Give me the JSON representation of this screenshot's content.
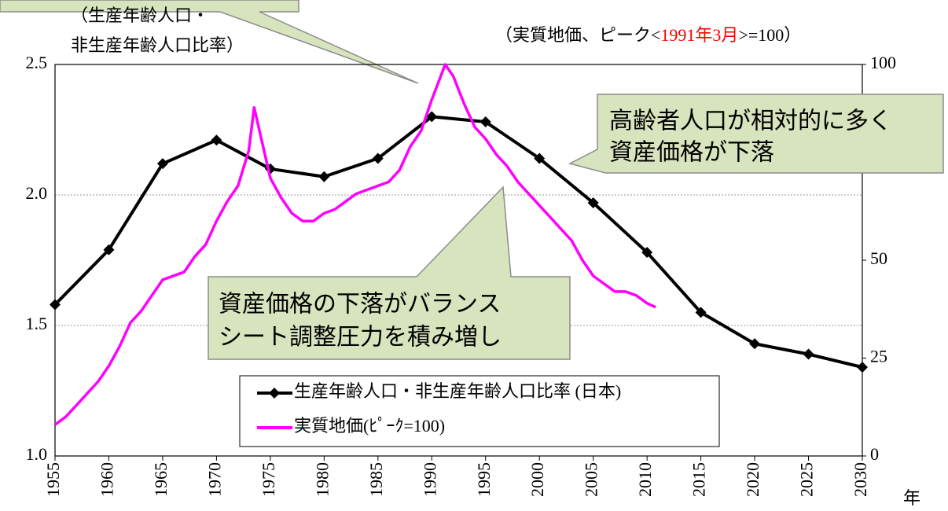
{
  "chart_data": {
    "type": "line",
    "y_label": [
      "（生産年齢人口・",
      "非生産年齢人口比率）"
    ],
    "y2_label": {
      "before": "（実質地価、ピーク<",
      "highlight": "1991年3月",
      "after": ">=100）"
    },
    "highlight_color": "#ff0000",
    "x_label": "年",
    "xlim": [
      1955,
      2030
    ],
    "xticks": [
      1955,
      1960,
      1965,
      1970,
      1975,
      1980,
      1985,
      1990,
      1995,
      2000,
      2005,
      2010,
      2015,
      2020,
      2025,
      2030
    ],
    "ylim": [
      1.0,
      2.5
    ],
    "yticks": [
      {
        "value": 1.0,
        "label": "1.0"
      },
      1.5,
      {
        "value": 2.0,
        "label": "2.0"
      },
      2.5
    ],
    "y2lim": [
      0,
      100
    ],
    "y2ticks": [
      0,
      25,
      50,
      100
    ],
    "grid": true,
    "series": [
      {
        "name": "生産年齢人口・非生産年齢人口比率 (日本)",
        "color": "#000000",
        "marker": "diamond",
        "x": [
          1955,
          1960,
          1965,
          1970,
          1975,
          1980,
          1985,
          1990,
          1995,
          2000,
          2005,
          2010,
          2015,
          2020,
          2025,
          2030
        ],
        "values": [
          1.58,
          1.79,
          2.12,
          2.21,
          2.1,
          2.07,
          2.14,
          2.3,
          2.28,
          2.14,
          1.97,
          1.78,
          1.55,
          1.43,
          1.39,
          1.34
        ]
      },
      {
        "name": "実質地価(ﾋﾟｰｸ=100)",
        "color": "#ff00ff",
        "axis": "y2",
        "x": [
          1955,
          1956,
          1957,
          1958,
          1959,
          1960,
          1961,
          1962,
          1963,
          1964,
          1965,
          1966,
          1967,
          1968,
          1969,
          1970,
          1971,
          1972,
          1973,
          1973.5,
          1974,
          1975,
          1976,
          1977,
          1978,
          1979,
          1980,
          1981,
          1982,
          1983,
          1984,
          1985,
          1986,
          1987,
          1988,
          1989,
          1990,
          1991.25,
          1992,
          1993,
          1994,
          1995,
          1996,
          1997,
          1998,
          1999,
          2000,
          2001,
          2002,
          2003,
          2004,
          2005,
          2006,
          2007,
          2008,
          2009,
          2010,
          2010.8
        ],
        "values": [
          8,
          10,
          13,
          16,
          19,
          23,
          28,
          34,
          37,
          41,
          45,
          46,
          47,
          51,
          54,
          60,
          65,
          69,
          78,
          89,
          83,
          71,
          66,
          62,
          60,
          60,
          62,
          63,
          65,
          67,
          68,
          69,
          70,
          73,
          79,
          83,
          91,
          100,
          97,
          90,
          84,
          81,
          77,
          74,
          70,
          67,
          64,
          61,
          58,
          55,
          50,
          46,
          44,
          42,
          42,
          41,
          39,
          38
        ]
      }
    ],
    "annotations": [
      [
        "高齢者人口が相対的に多く",
        "資産価格が下落"
      ],
      [
        "資産価格の下落がバランス",
        "シート調整圧力を積み増し"
      ]
    ]
  }
}
